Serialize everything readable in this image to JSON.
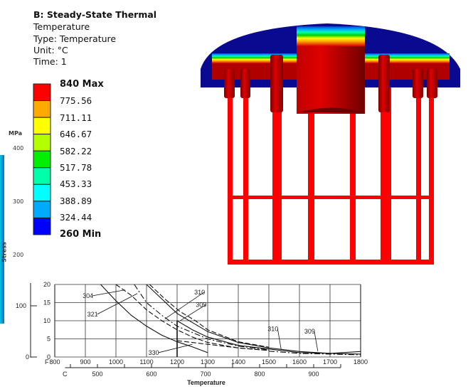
{
  "header": {
    "title": "B: Steady-State Thermal",
    "result": "Temperature",
    "type": "Type: Temperature",
    "unit": "Unit: °C",
    "time": "Time: 1"
  },
  "legend": {
    "labels": [
      "840 Max",
      "775.56",
      "711.11",
      "646.67",
      "582.22",
      "517.78",
      "453.33",
      "388.89",
      "324.44",
      "260 Min"
    ],
    "colors": [
      "#ff0000",
      "#ffaa00",
      "#ffff00",
      "#b4ff00",
      "#00ee00",
      "#00ffaa",
      "#00ffff",
      "#00aaff",
      "#0000ff"
    ]
  },
  "left_axis": {
    "unit": "MPa",
    "ticks": [
      "400",
      "300",
      "200"
    ],
    "label": "Stress"
  },
  "chart_data": {
    "type": "line",
    "xlabel": "Temperature",
    "x_primary_unit": "F",
    "x_secondary_unit": "C",
    "xlim": [
      800,
      1800
    ],
    "ylim": [
      0,
      20
    ],
    "x_ticks": [
      "800",
      "900",
      "1000",
      "1100",
      "1200",
      "1300",
      "1400",
      "1500",
      "1600",
      "1700",
      "1800"
    ],
    "x_secondary_ticks": [
      "500",
      "600",
      "700",
      "800",
      "900"
    ],
    "y_ticks": [
      "0",
      "5",
      "10",
      "15",
      "20"
    ],
    "outer_y_tick": "100",
    "grid": true,
    "series": [
      {
        "style": "solid",
        "x": [
          950,
          1000,
          1050,
          1100,
          1150,
          1200,
          1250,
          1300
        ],
        "y": [
          20,
          15.5,
          11.5,
          8.5,
          6,
          4.2,
          2.8,
          1.2
        ]
      },
      {
        "style": "dashed",
        "x": [
          1000,
          1050,
          1100,
          1150,
          1200,
          1250,
          1300,
          1400,
          1500
        ],
        "y": [
          20,
          17,
          13,
          10,
          7.5,
          5.5,
          4,
          2.5,
          1.8
        ]
      },
      {
        "style": "dashdot",
        "x": [
          1060,
          1100,
          1150,
          1200,
          1300,
          1400,
          1500
        ],
        "y": [
          20,
          15,
          11.5,
          8.5,
          5,
          3,
          2
        ]
      },
      {
        "style": "solid",
        "x": [
          1100,
          1150,
          1200,
          1250,
          1300,
          1400,
          1500,
          1600,
          1700,
          1800
        ],
        "y": [
          20,
          16,
          12,
          9.5,
          7,
          4,
          2.5,
          1.5,
          1,
          1.5
        ]
      },
      {
        "style": "dashed",
        "x": [
          1110,
          1160,
          1210,
          1260,
          1300,
          1400,
          1500
        ],
        "y": [
          20,
          16,
          12.5,
          10,
          7.5,
          4.2,
          2.7
        ]
      },
      {
        "style": "solid",
        "x": [
          1200,
          1250,
          1300,
          1400,
          1500,
          1600,
          1800
        ],
        "y": [
          10,
          7.5,
          5.5,
          3.2,
          2.2,
          1.2,
          0.8
        ]
      },
      {
        "style": "dashed",
        "x": [
          1200,
          1300,
          1400,
          1500
        ],
        "y": [
          4.5,
          3.5,
          2.5,
          1.8
        ]
      },
      {
        "style": "dashdot",
        "x": [
          1500,
          1600,
          1700,
          1800
        ],
        "y": [
          1.6,
          1,
          0.8,
          0.6
        ]
      }
    ],
    "annotations": [
      {
        "text": "304",
        "x": 905,
        "y": 16.3,
        "to": [
          1030,
          18.5
        ]
      },
      {
        "text": "321",
        "x": 920,
        "y": 11.2,
        "to": [
          1070,
          17.5
        ]
      },
      {
        "text": "310",
        "x": 1270,
        "y": 17.3,
        "to": [
          1160,
          10.5
        ]
      },
      {
        "text": "309",
        "x": 1275,
        "y": 13.8,
        "to": [
          1210,
          10
        ]
      },
      {
        "text": "330",
        "x": 1120,
        "y": 0.6,
        "to": [
          1250,
          3.5
        ]
      },
      {
        "text": "310",
        "x": 1510,
        "y": 7.2,
        "to": [
          1540,
          2.2
        ]
      },
      {
        "text": "309",
        "x": 1630,
        "y": 6.5,
        "to": [
          1660,
          1.6
        ]
      }
    ]
  }
}
